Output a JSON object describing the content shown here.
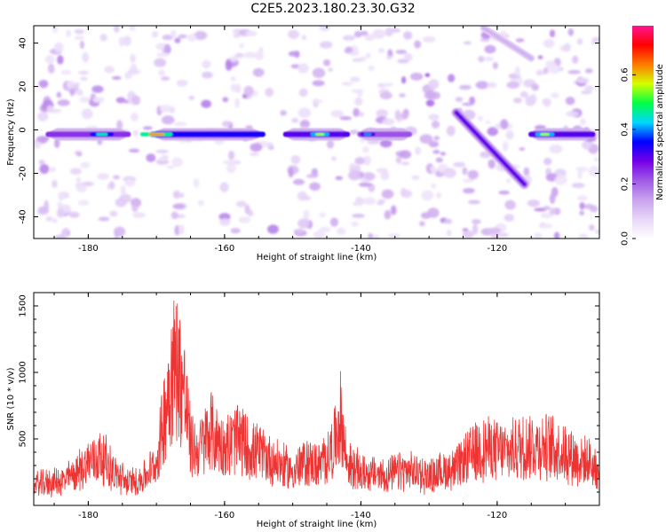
{
  "page": {
    "title": "C2E5.2023.180.23.30.G32"
  },
  "colors": {
    "snr_line": "#ee3333",
    "frame": "#000000",
    "colormap": [
      "#ffffff",
      "#e7d6f7",
      "#c9a3ee",
      "#a05ae6",
      "#7400e8",
      "#0000ff",
      "#00d8ff",
      "#00ff44",
      "#d4ff00",
      "#ff7a00",
      "#ff0000",
      "#ff1493"
    ]
  },
  "chart_data": [
    {
      "type": "heatmap",
      "title": "C2E5.2023.180.23.30.G32",
      "xlabel": "Height of straight line (km)",
      "ylabel": "Frequency (Hz)",
      "xlim": [
        -188,
        -105
      ],
      "ylim": [
        -50,
        48
      ],
      "xticks": [
        -180,
        -160,
        -140,
        -120
      ],
      "yticks": [
        -40,
        -20,
        0,
        20,
        40
      ],
      "colorbar": {
        "label": "Normalized spectral amplitude",
        "range": [
          0,
          0.78
        ],
        "ticks": [
          "0.0",
          "0.2",
          "0.4",
          "0.6"
        ]
      },
      "features": {
        "horizontal_band": {
          "frequency": -2,
          "segments": [
            {
              "x_start": -187,
              "x_end": -173,
              "peak_amplitude": 0.45,
              "peak_x": -178
            },
            {
              "x_start": -172,
              "x_end": -153,
              "peak_amplitude": 0.62,
              "peak_x": -170
            },
            {
              "x_start": -152,
              "x_end": -141,
              "peak_amplitude": 0.55,
              "peak_x": -146
            },
            {
              "x_start": -141,
              "x_end": -132,
              "peak_amplitude": 0.4,
              "peak_x": -139
            },
            {
              "x_start": -116,
              "x_end": -105,
              "peak_amplitude": 0.55,
              "peak_x": -113
            }
          ]
        },
        "diagonal_streak": {
          "start": {
            "x": -126,
            "frequency": 8
          },
          "end": {
            "x": -116,
            "frequency": -25
          },
          "peak_amplitude": 0.3
        },
        "upper_diagonal": {
          "start": {
            "x": -122,
            "frequency": 47
          },
          "end": {
            "x": -115,
            "frequency": 33
          },
          "peak_amplitude": 0.1
        }
      }
    },
    {
      "type": "line",
      "xlabel": "Height of straight line (km)",
      "ylabel": "SNR (10 * v/v)",
      "xlim": [
        -188,
        -105
      ],
      "ylim": [
        0,
        1600
      ],
      "xticks": [
        -180,
        -160,
        -140,
        -120
      ],
      "yticks": [
        500,
        1000,
        1500
      ],
      "envelope": {
        "x": [
          -188,
          -184,
          -182,
          -180,
          -178,
          -176,
          -174,
          -172,
          -170,
          -169,
          -168,
          -167,
          -166,
          -165,
          -164,
          -162,
          -160,
          -158,
          -156,
          -154,
          -152,
          -150,
          -148,
          -146,
          -144,
          -143,
          -142,
          -140,
          -138,
          -136,
          -134,
          -132,
          -130,
          -128,
          -126,
          -124,
          -122,
          -120,
          -118,
          -116,
          -114,
          -112,
          -110,
          -108,
          -106,
          -105
        ],
        "y": [
          200,
          230,
          300,
          420,
          480,
          300,
          220,
          260,
          400,
          800,
          1250,
          1380,
          1150,
          600,
          520,
          720,
          560,
          650,
          520,
          480,
          400,
          330,
          420,
          380,
          560,
          850,
          400,
          320,
          300,
          290,
          330,
          320,
          280,
          330,
          360,
          480,
          560,
          530,
          520,
          590,
          580,
          560,
          520,
          440,
          400,
          300
        ]
      }
    }
  ]
}
